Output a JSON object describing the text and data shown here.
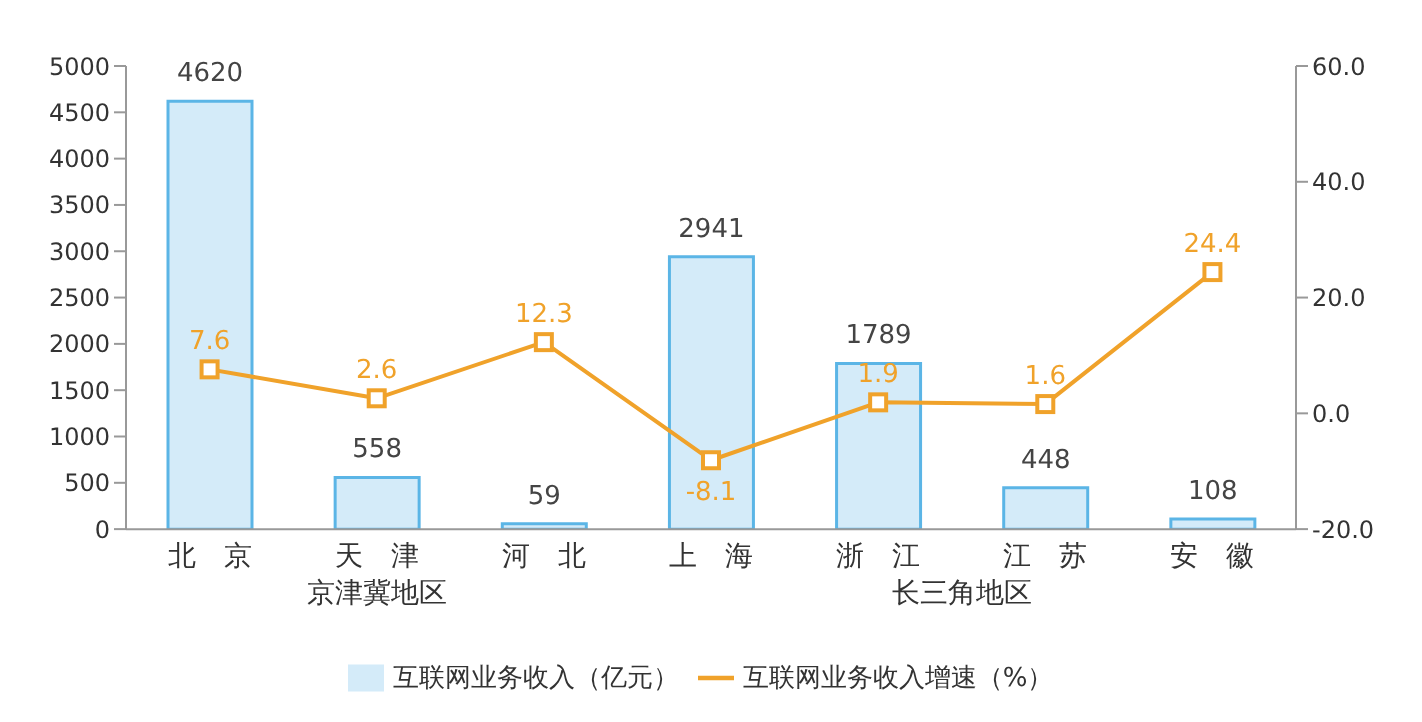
{
  "chart_data": {
    "type": "bar",
    "categories": [
      "北　京",
      "天　津",
      "河　北",
      "上　海",
      "浙　江",
      "江　苏",
      "安　徽"
    ],
    "series": [
      {
        "name": "互联网业务收入（亿元）",
        "color": "#d4ebf9",
        "values": [
          4620,
          558,
          59,
          2941,
          1789,
          448,
          108
        ]
      },
      {
        "name": "互联网业务收入增速（%）",
        "type": "line",
        "axis": "y2",
        "color": "#f0a22a",
        "values": [
          7.6,
          2.6,
          12.3,
          -8.1,
          1.9,
          1.6,
          24.4
        ]
      }
    ],
    "ylim": [
      0,
      5000
    ],
    "yticks": [
      0,
      500,
      1000,
      1500,
      2000,
      2500,
      3000,
      3500,
      4000,
      4500,
      5000
    ],
    "y2lim": [
      -20,
      60
    ],
    "y2ticks": [
      {
        "value": -20,
        "label": "-20.0"
      },
      {
        "value": 0,
        "label": "0.0"
      },
      {
        "value": 20,
        "label": "20.0"
      },
      {
        "value": 40,
        "label": "40.0"
      },
      {
        "value": 60,
        "label": "60.0"
      }
    ],
    "annotations": [
      "京津冀地区",
      "长三角地区"
    ],
    "data_labels": true,
    "legend": "bottom",
    "marker": "square"
  }
}
